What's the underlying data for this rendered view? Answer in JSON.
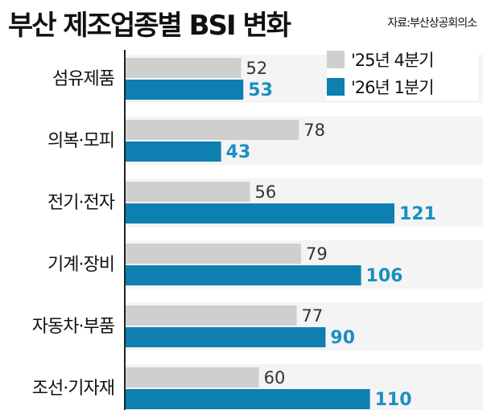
{
  "header": {
    "title": "부산 제조업종별 BSI 변화",
    "source": "자료:부산상공회의소"
  },
  "colors": {
    "prev": "#cfcfcf",
    "curr": "#0d7fb0",
    "curr_label": "#1a8fc4"
  },
  "chart_data": {
    "type": "bar",
    "orientation": "horizontal",
    "title": "부산 제조업종별 BSI 변화",
    "categories": [
      "섬유제품",
      "의복·모피",
      "전기·전자",
      "기계·장비",
      "자동차·부품",
      "조선·기자재"
    ],
    "series": [
      {
        "name": "'25년 4분기",
        "values": [
          52,
          78,
          56,
          79,
          77,
          60
        ]
      },
      {
        "name": "'26년 1분기",
        "values": [
          53,
          43,
          121,
          106,
          90,
          110
        ]
      }
    ],
    "legend_position": "top-right",
    "grid": false
  }
}
